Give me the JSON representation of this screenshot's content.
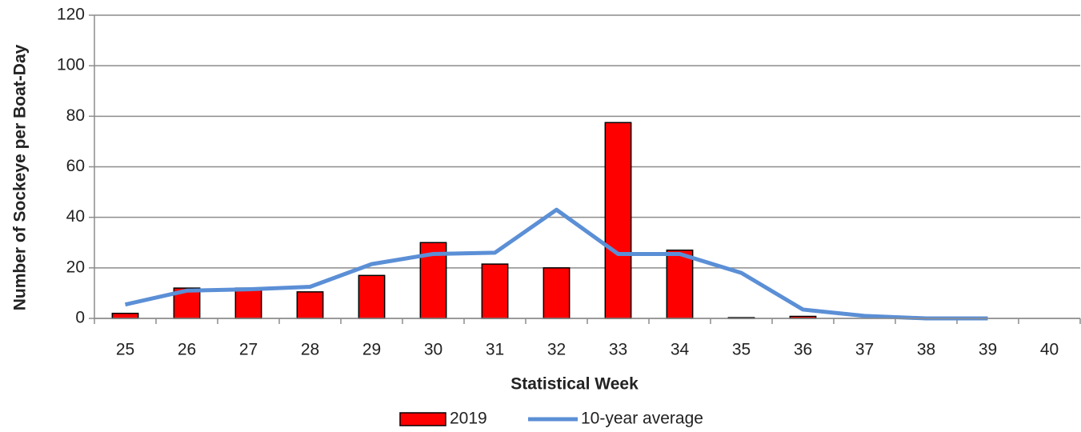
{
  "chart_data": {
    "type": "combo",
    "x_label": "Statistical Week",
    "y_label": "Number of Sockeye per Boat-Day",
    "categories": [
      "25",
      "26",
      "27",
      "28",
      "29",
      "30",
      "31",
      "32",
      "33",
      "34",
      "35",
      "36",
      "37",
      "38",
      "39",
      "40"
    ],
    "series": [
      {
        "name": "2019",
        "type": "bar",
        "color": "#ff0000",
        "values": [
          2,
          12,
          12,
          10.5,
          17,
          30,
          21.5,
          20,
          77.5,
          27,
          0.3,
          0.8,
          null,
          null,
          null,
          null
        ]
      },
      {
        "name": "10-year average",
        "type": "line",
        "color": "#5b8fd6",
        "values": [
          5.5,
          11,
          11.5,
          12.5,
          21.5,
          25.5,
          26,
          43,
          25.5,
          25.5,
          18,
          3.5,
          1,
          0,
          0,
          null
        ]
      }
    ],
    "ylim": [
      0,
      120
    ],
    "yticks": [
      0,
      20,
      40,
      60,
      80,
      100,
      120
    ],
    "grid": true,
    "legend": "bottom"
  }
}
